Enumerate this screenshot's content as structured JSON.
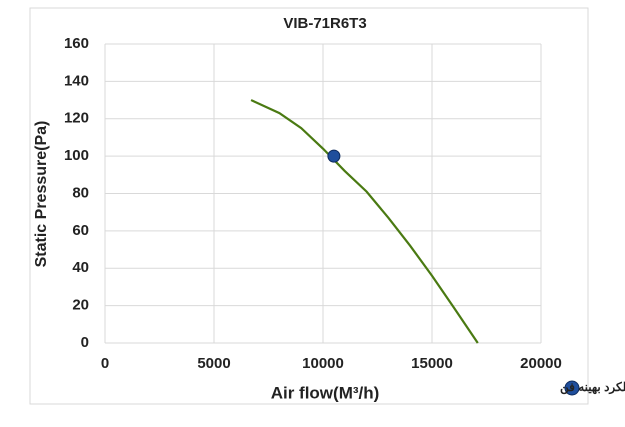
{
  "chart_data": {
    "type": "line",
    "title": "VIB-71R6T3",
    "x_label": "Air flow(M³/h)",
    "y_label": "Static Pressure(Pa)",
    "xlim": [
      0,
      20000
    ],
    "xticks": [
      0,
      5000,
      10000,
      15000,
      20000
    ],
    "ylim": [
      0,
      160
    ],
    "yticks": [
      0,
      20,
      40,
      60,
      80,
      100,
      120,
      140,
      160
    ],
    "grid": true,
    "legend": "bottom-right",
    "series": [
      {
        "type": "line",
        "color": "#4a7a12",
        "x": [
          6700,
          8000,
          9000,
          10000,
          11000,
          12000,
          13000,
          14000,
          15000,
          16000,
          17100
        ],
        "values": [
          130,
          123,
          115,
          104,
          92,
          81,
          67,
          52,
          36,
          19,
          0
        ]
      },
      {
        "type": "scatter",
        "name": "نقطه عملکرد بهینه فن",
        "color": "#1f4e9c",
        "x": [
          10500
        ],
        "values": [
          100
        ]
      }
    ]
  }
}
